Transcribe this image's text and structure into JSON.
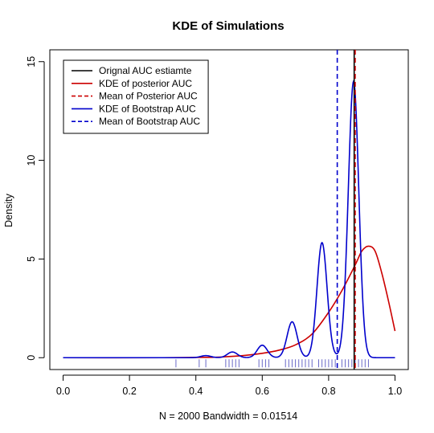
{
  "chart_data": {
    "type": "line",
    "title": "KDE of Simulations",
    "xlabel": "N = 2000   Bandwidth = 0.01514",
    "ylabel": "Density",
    "xlim": [
      -0.04,
      1.04
    ],
    "ylim": [
      -0.6,
      15.6
    ],
    "x_ticks": [
      0.0,
      0.2,
      0.4,
      0.6,
      0.8,
      1.0
    ],
    "x_tick_labels": [
      "0.0",
      "0.2",
      "0.4",
      "0.6",
      "0.8",
      "1.0"
    ],
    "y_ticks": [
      0,
      5,
      10,
      15
    ],
    "y_tick_labels": [
      "0",
      "5",
      "10",
      "15"
    ],
    "grid": false,
    "legend_position": "top-left",
    "series": [
      {
        "name": "Orignal AUC estiamte",
        "kind": "vline",
        "x": 0.877,
        "color": "#000000",
        "dash": "solid"
      },
      {
        "name": "KDE of posterior AUC",
        "kind": "curve",
        "color": "#cc0000",
        "dash": "solid",
        "x": [
          0.0,
          0.3,
          0.45,
          0.5,
          0.55,
          0.6,
          0.65,
          0.7,
          0.75,
          0.8,
          0.84,
          0.88,
          0.9,
          0.92,
          0.94,
          0.96,
          0.98,
          1.0
        ],
        "y": [
          0.0,
          0.0,
          0.02,
          0.06,
          0.12,
          0.22,
          0.38,
          0.65,
          1.2,
          2.3,
          3.4,
          4.7,
          5.4,
          5.65,
          5.4,
          4.3,
          2.9,
          1.35
        ]
      },
      {
        "name": "Mean of Posterior AUC",
        "kind": "vline",
        "x": 0.88,
        "color": "#cc0000",
        "dash": "dashed"
      },
      {
        "name": "KDE of Bootstrap AUC",
        "kind": "mixture",
        "color": "#0000cc",
        "dash": "solid",
        "x_range": [
          0.0,
          1.0
        ],
        "bandwidth": 0.01514,
        "components": [
          {
            "center": 0.43,
            "weight": 0.004
          },
          {
            "center": 0.51,
            "weight": 0.011
          },
          {
            "center": 0.6,
            "weight": 0.024
          },
          {
            "center": 0.69,
            "weight": 0.069
          },
          {
            "center": 0.78,
            "weight": 0.22
          },
          {
            "center": 0.8,
            "weight": 0.003
          },
          {
            "center": 0.865,
            "weight": 0.1
          },
          {
            "center": 0.877,
            "weight": 0.455
          }
        ]
      },
      {
        "name": "Mean of Bootstrap AUC",
        "kind": "vline",
        "x": 0.826,
        "color": "#0000cc",
        "dash": "dashed"
      }
    ],
    "rug": {
      "color": "#6a6ac8",
      "x": [
        0.34,
        0.41,
        0.43,
        0.49,
        0.5,
        0.51,
        0.52,
        0.53,
        0.59,
        0.6,
        0.61,
        0.62,
        0.67,
        0.68,
        0.69,
        0.7,
        0.71,
        0.72,
        0.73,
        0.74,
        0.75,
        0.77,
        0.78,
        0.79,
        0.8,
        0.81,
        0.82,
        0.84,
        0.85,
        0.86,
        0.87,
        0.88,
        0.89,
        0.9,
        0.91,
        0.92
      ]
    }
  }
}
